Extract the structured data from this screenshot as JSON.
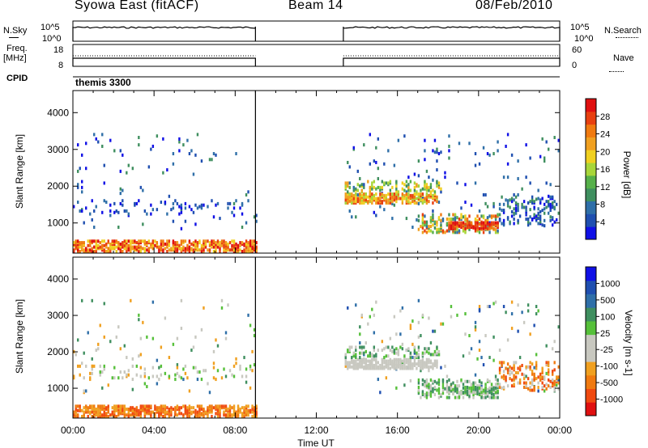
{
  "header": {
    "station": "Syowa East (fitACF)",
    "beam": "Beam 14",
    "date": "08/Feb/2010"
  },
  "side_labels": {
    "nsky": "N.Sky",
    "nsearch": "N.Search",
    "freq": "Freq.",
    "mhz": "[MHz]",
    "nave": "Nave",
    "cpid": "CPID"
  },
  "cpid_name": "themis 3300",
  "colors": {
    "power": [
      "#1010e6",
      "#1f4fb0",
      "#2f6fa8",
      "#3f8f5f",
      "#56b04a",
      "#a8d63a",
      "#f0d020",
      "#f0a020",
      "#f07a10",
      "#e84010",
      "#e01010"
    ],
    "velocity": [
      "#e01010",
      "#f04a10",
      "#f07a10",
      "#f0a020",
      "#c8c8c0",
      "#c8c8c0",
      "#56c03a",
      "#3f8f5f",
      "#2f6fa8",
      "#1f4fb0",
      "#1010e6"
    ]
  },
  "chart_data": [
    {
      "type": "line",
      "panel": "N.Sky / N.Search",
      "ylabel_left": "N.Sky",
      "ylabel_right": "N.Search",
      "left_ticks": [
        "10^5",
        "10^0"
      ],
      "right_ticks": [
        "10^5",
        "10^0"
      ],
      "segments": [
        {
          "start": "00:00",
          "end": "09:00"
        },
        {
          "start": "13:20",
          "end": "24:00"
        }
      ]
    },
    {
      "type": "line",
      "panel": "Freq. / Nave",
      "ylabel_left": "Freq. [MHz]",
      "ylabel_right": "Nave",
      "left_ticks": [
        "18",
        "8"
      ],
      "right_ticks": [
        "60",
        "0"
      ],
      "segments": [
        {
          "start": "00:00",
          "end": "09:00"
        },
        {
          "start": "13:20",
          "end": "24:00"
        }
      ]
    },
    {
      "type": "heatmap",
      "panel": "Power",
      "xlabel": "Time UT",
      "ylabel": "Slant Range [km]",
      "xlim": [
        "00:00",
        "24:00"
      ],
      "ylim": [
        180,
        4600
      ],
      "y_ticks": [
        1000,
        2000,
        3000,
        4000
      ],
      "colorbar_label": "Power [dB]",
      "colorbar_ticks": [
        4,
        8,
        12,
        16,
        20,
        24,
        28
      ],
      "data_gaps": [
        {
          "start": "09:00",
          "end": "13:20"
        }
      ]
    },
    {
      "type": "heatmap",
      "panel": "Velocity",
      "xlabel": "Time UT",
      "ylabel": "Slant Range [km]",
      "xlim": [
        "00:00",
        "24:00"
      ],
      "ylim": [
        180,
        4600
      ],
      "y_ticks": [
        1000,
        2000,
        3000,
        4000
      ],
      "x_ticks": [
        "00:00",
        "04:00",
        "08:00",
        "12:00",
        "16:00",
        "20:00",
        "00:00"
      ],
      "colorbar_label": "Velocity [m s-1]",
      "colorbar_ticks": [
        1000,
        500,
        100,
        25,
        -25,
        -100,
        -500,
        -1000
      ],
      "data_gaps": [
        {
          "start": "09:00",
          "end": "13:20"
        }
      ]
    }
  ]
}
